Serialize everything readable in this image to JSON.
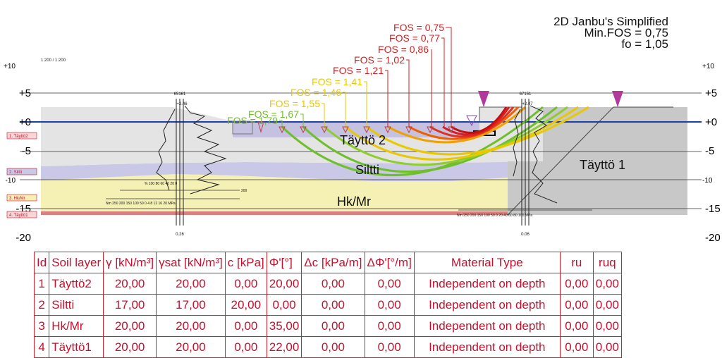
{
  "method": {
    "title": "2D Janbu's Simplified",
    "min_fos": "Min.FOS = 0,75",
    "fo": "fo = 1,05"
  },
  "scale_note": "1:200 / 1:200",
  "axis": {
    "left_ticks": [
      {
        "label": "+10",
        "value": 10
      },
      {
        "label": "+5",
        "value": 5
      },
      {
        "label": "+0",
        "value": 0
      },
      {
        "label": "-5",
        "value": -5
      },
      {
        "label": "-10",
        "value": -10
      },
      {
        "label": "-15",
        "value": -15
      },
      {
        "label": "-20",
        "value": -20
      }
    ],
    "right_ticks": [
      {
        "label": "+10",
        "value": 10
      },
      {
        "label": "+5",
        "value": 5
      },
      {
        "label": "+0",
        "value": 0
      },
      {
        "label": "-5",
        "value": -5
      },
      {
        "label": "-10",
        "value": -10
      },
      {
        "label": "-15",
        "value": -15
      },
      {
        "label": "-20",
        "value": -20
      }
    ]
  },
  "layer_tags": [
    "1. Täyttö2",
    "2. Siltti",
    "3. Hk/Mr",
    "4. Täyttö1"
  ],
  "layer_labels": {
    "tayto2": "Täyttö 2",
    "siltti": "Siltti",
    "hkmr": "Hk/Mr",
    "tayto1": "Täyttö 1"
  },
  "fos_labels": [
    {
      "text": "FOS = 0,75",
      "color": "#d42020"
    },
    {
      "text": "FOS = 0,77",
      "color": "#d42020"
    },
    {
      "text": "FOS = 0,86",
      "color": "#d42020"
    },
    {
      "text": "FOS = 1,02",
      "color": "#d42020"
    },
    {
      "text": "FOS = 1,21",
      "color": "#d42020"
    },
    {
      "text": "FOS = 1,41",
      "color": "#e8c800"
    },
    {
      "text": "FOS = 1,46",
      "color": "#e8c800"
    },
    {
      "text": "FOS = 1,55",
      "color": "#e8c800"
    },
    {
      "text": "FOS = 1,67",
      "color": "#6fbf2a"
    },
    {
      "text": "FOS = 1,79",
      "color": "#6fbf2a"
    }
  ],
  "boreholes": {
    "left_id": "65161",
    "right_id": "67151",
    "left_top": "+2.46",
    "right_top": "+2.47",
    "left_bottom": "0.26",
    "right_bottom": "0.06",
    "left_scale": "Nm 250 200 150 100 50 0 4 8 12 16 20 MPa",
    "left_scale2": "% 100 80 60 40 20 0",
    "right_scale": "Nm 250 200 150 100 50 0 20 40 60 80 100 MPa",
    "scale_end": "200"
  },
  "colors": {
    "layer_tayto2": "#e4e4e4",
    "layer_siltti": "#c9c8e6",
    "layer_hkmr": "#f5f0b4",
    "layer_tayto1": "#c8c8c8",
    "water": "#1f3fa8",
    "marker": "#b03a9a",
    "table_red": "#c8102e"
  },
  "table": {
    "headers": [
      "Id",
      "Soil layer",
      "γ [kN/m³]",
      "γsat [kN/m³]",
      "c [kPa]",
      "Φ'[°]",
      "Δc [kPa/m]",
      "ΔΦ'[°/m]",
      "Material Type",
      "ru",
      "ruq"
    ],
    "rows": [
      [
        "1",
        "Täyttö2",
        "20,00",
        "20,00",
        "0,00",
        "20,00",
        "0,00",
        "0,00",
        "Independent on depth",
        "0,00",
        "0,00"
      ],
      [
        "2",
        "Siltti",
        "17,00",
        "17,00",
        "20,00",
        "0,00",
        "0,00",
        "0,00",
        "Independent on depth",
        "0,00",
        "0,00"
      ],
      [
        "3",
        "Hk/Mr",
        "20,00",
        "20,00",
        "0,00",
        "35,00",
        "0,00",
        "0,00",
        "Independent on depth",
        "0,00",
        "0,00"
      ],
      [
        "4",
        "Täyttö1",
        "20,00",
        "20,00",
        "0,00",
        "22,00",
        "0,00",
        "0,00",
        "Independent on depth",
        "0,00",
        "0,00"
      ]
    ]
  }
}
